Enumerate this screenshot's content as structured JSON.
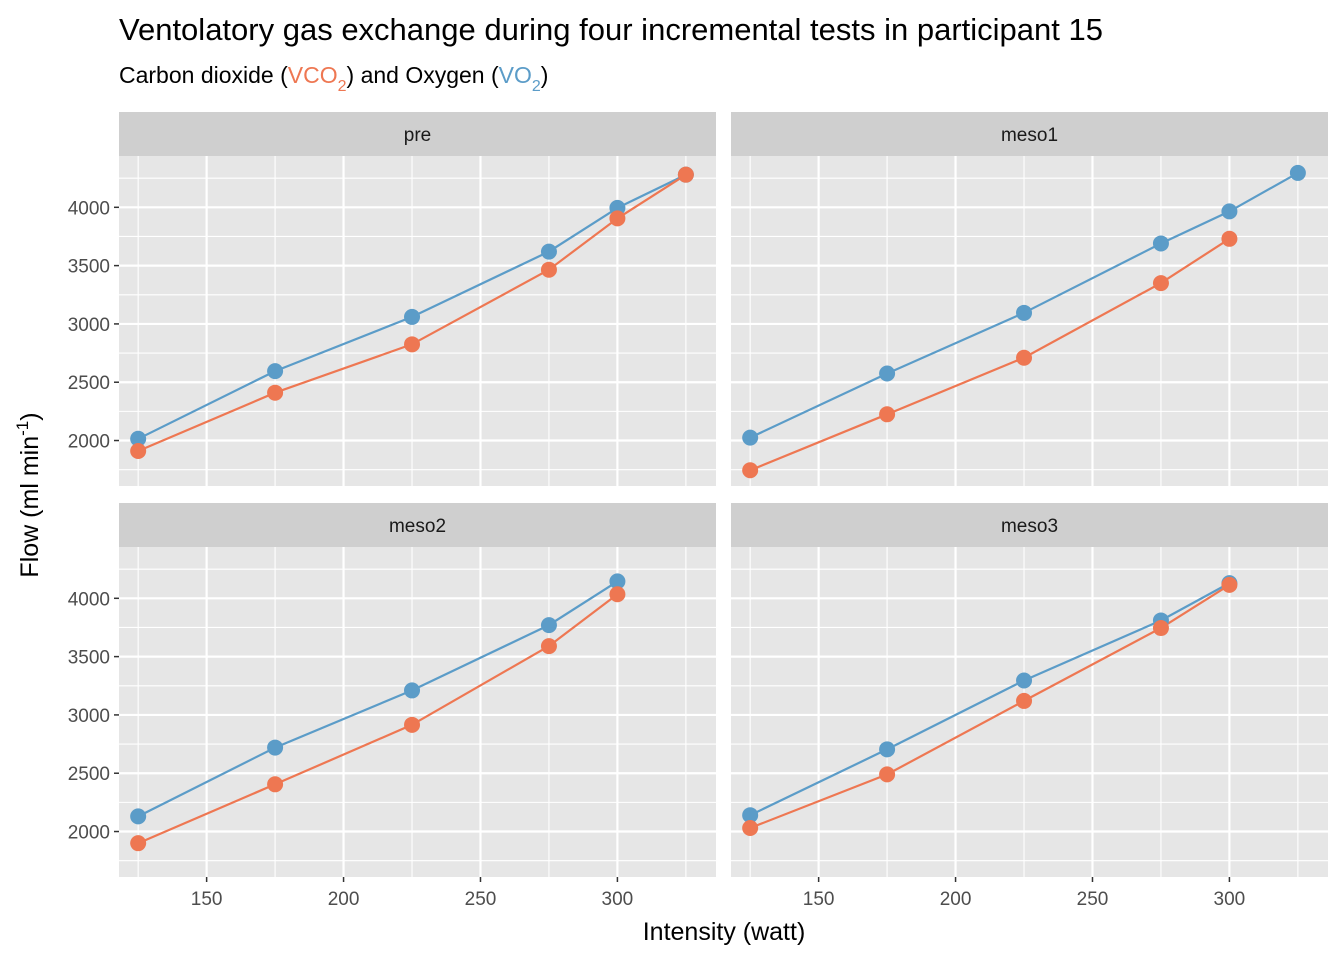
{
  "chart_data": {
    "type": "line",
    "title": "Ventolatory gas exchange during four incremental tests in participant 15",
    "subtitle": {
      "prefix": "Carbon dioxide (",
      "co2_main": "VCO",
      "co2_sub": "2",
      "middle": ") and Oxygen (",
      "o2_main": "VO",
      "o2_sub": "2",
      "suffix": ")"
    },
    "xlabel": "Intensity (watt)",
    "ylabel": {
      "main": "Flow (ml min",
      "sup": "-1",
      "suffix": ")"
    },
    "xlim": [
      118,
      336
    ],
    "ylim": [
      1610,
      4440
    ],
    "x_ticks": [
      "150",
      "200",
      "250",
      "300"
    ],
    "y_ticks": [
      "2000",
      "2500",
      "3000",
      "3500",
      "4000"
    ],
    "grid": true,
    "colors": {
      "vco2": "#EE7752",
      "vo2": "#5B9CC8",
      "panel_bg": "#E6E6E6",
      "strip_bg": "#CFCFCF",
      "grid": "#FFFFFF"
    },
    "panels": [
      {
        "name": "pre",
        "series": [
          {
            "key": "vo2",
            "x": [
              125,
              175,
              225,
              275,
              300,
              325
            ],
            "y": [
              2015,
              2595,
              3060,
              3620,
              3995,
              4280
            ]
          },
          {
            "key": "vco2",
            "x": [
              125,
              175,
              225,
              275,
              300,
              325
            ],
            "y": [
              1910,
              2410,
              2825,
              3465,
              3905,
              4280
            ]
          }
        ]
      },
      {
        "name": "meso1",
        "series": [
          {
            "key": "vo2",
            "x": [
              125,
              175,
              225,
              275,
              300,
              325
            ],
            "y": [
              2025,
              2575,
              3095,
              3690,
              3965,
              4295
            ]
          },
          {
            "key": "vco2",
            "x": [
              125,
              175,
              225,
              275,
              300
            ],
            "y": [
              1745,
              2225,
              2710,
              3350,
              3730
            ]
          }
        ]
      },
      {
        "name": "meso2",
        "series": [
          {
            "key": "vo2",
            "x": [
              125,
              175,
              225,
              275,
              300
            ],
            "y": [
              2130,
              2720,
              3210,
              3770,
              4145
            ]
          },
          {
            "key": "vco2",
            "x": [
              125,
              175,
              225,
              275,
              300
            ],
            "y": [
              1900,
              2405,
              2915,
              3590,
              4035
            ]
          }
        ]
      },
      {
        "name": "meso3",
        "series": [
          {
            "key": "vo2",
            "x": [
              125,
              175,
              225,
              275,
              300
            ],
            "y": [
              2140,
              2705,
              3295,
              3810,
              4130
            ]
          },
          {
            "key": "vco2",
            "x": [
              125,
              175,
              225,
              275,
              300
            ],
            "y": [
              2030,
              2490,
              3120,
              3745,
              4115
            ]
          }
        ]
      }
    ]
  }
}
